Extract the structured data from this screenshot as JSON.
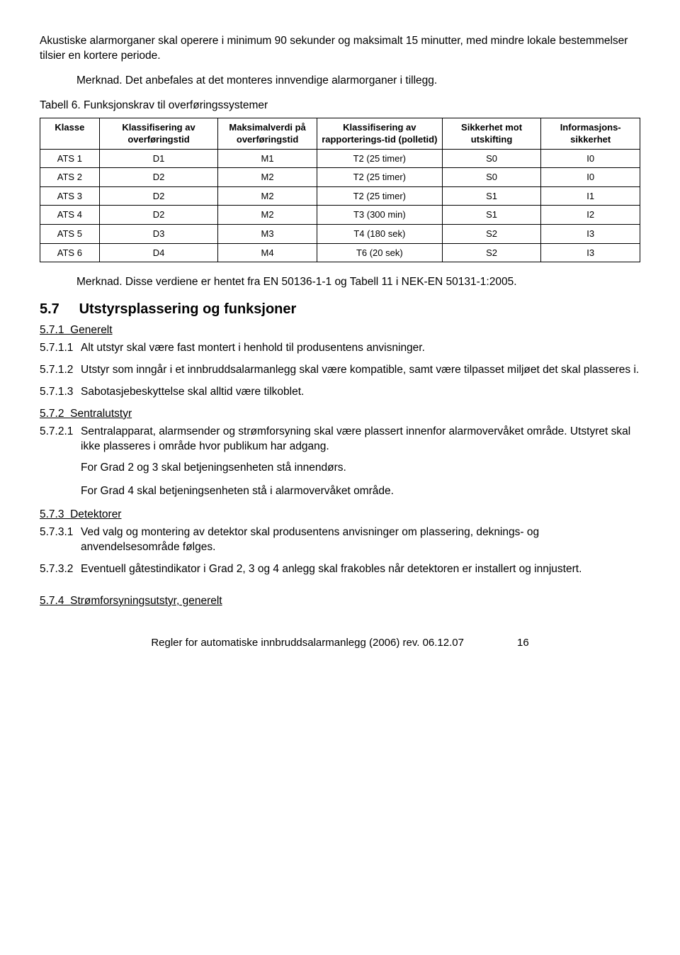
{
  "intro": {
    "p1": "Akustiske alarmorganer skal operere i minimum 90 sekunder og maksimalt 15 minutter, med mindre lokale bestemmelser tilsier en kortere periode.",
    "merknad": "Merknad. Det anbefales at det monteres innvendige alarmorganer i tillegg."
  },
  "table": {
    "caption": "Tabell 6. Funksjonskrav til overføringssystemer",
    "columns": [
      "Klasse",
      "Klassifisering av overføringstid",
      "Maksimalverdi på overføringstid",
      "Klassifisering av rapporterings-tid (polletid)",
      "Sikkerhet mot utskifting",
      "Informasjons-sikkerhet"
    ],
    "rows": [
      [
        "ATS 1",
        "D1",
        "M1",
        "T2 (25 timer)",
        "S0",
        "I0"
      ],
      [
        "ATS 2",
        "D2",
        "M2",
        "T2 (25 timer)",
        "S0",
        "I0"
      ],
      [
        "ATS 3",
        "D2",
        "M2",
        "T2 (25 timer)",
        "S1",
        "I1"
      ],
      [
        "ATS 4",
        "D2",
        "M2",
        "T3 (300 min)",
        "S1",
        "I2"
      ],
      [
        "ATS 5",
        "D3",
        "M3",
        "T4 (180 sek)",
        "S2",
        "I3"
      ],
      [
        "ATS 6",
        "D4",
        "M4",
        "T6 (20 sek)",
        "S2",
        "I3"
      ]
    ]
  },
  "merknad2": "Merknad. Disse verdiene er hentet fra EN 50136-1-1 og Tabell 11 i NEK-EN 50131-1:2005.",
  "section": {
    "num": "5.7",
    "title": "Utstyrsplassering og funksjoner"
  },
  "s571": {
    "heading_num": "5.7.1",
    "heading": "Generelt",
    "i1_num": "5.7.1.1",
    "i1": "Alt utstyr skal være fast montert i henhold til produsentens anvisninger.",
    "i2_num": "5.7.1.2",
    "i2": "Utstyr som inngår i et innbruddsalarmanlegg skal være kompatible, samt være tilpasset miljøet det skal plasseres i.",
    "i3_num": "5.7.1.3",
    "i3": "Sabotasjebeskyttelse skal alltid være tilkoblet."
  },
  "s572": {
    "heading_num": "5.7.2",
    "heading": "Sentralutstyr",
    "i1_num": "5.7.2.1",
    "i1": "Sentralapparat, alarmsender og strømforsyning skal være plassert innenfor alarmovervåket område. Utstyret skal ikke plasseres i område hvor publikum har adgang.",
    "p2": "For Grad 2 og 3 skal betjeningsenheten stå innendørs.",
    "p3": "For Grad 4 skal betjeningsenheten stå i alarmovervåket område."
  },
  "s573": {
    "heading_num": "5.7.3",
    "heading": "Detektorer",
    "i1_num": "5.7.3.1",
    "i1": "Ved valg og montering av detektor skal produsentens anvisninger om plassering, deknings- og anvendelsesområde følges.",
    "i2_num": "5.7.3.2",
    "i2": "Eventuell gåtestindikator i Grad 2, 3 og 4 anlegg skal frakobles når detektoren er installert og innjustert."
  },
  "s574": {
    "heading_num": "5.7.4",
    "heading": "Strømforsyningsutstyr, generelt"
  },
  "footer": {
    "text": "Regler for automatiske innbruddsalarmanlegg (2006) rev. 06.12.07",
    "page": "16"
  }
}
